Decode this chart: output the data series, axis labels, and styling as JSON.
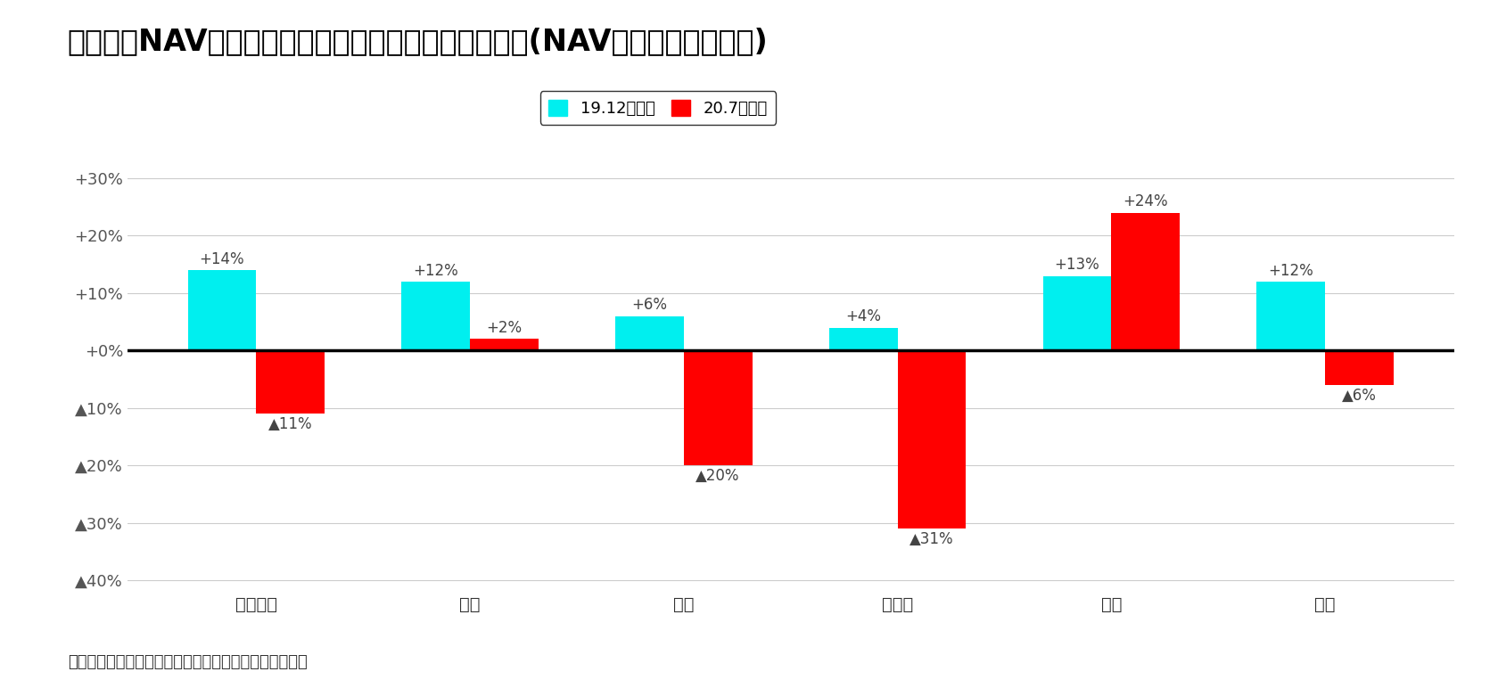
{
  "title": "図表３：NAV倍率が示唆する将来の不動産価格騰落率(NAV倍率＝１倍を前提)",
  "categories": [
    "オフィス",
    "住宅",
    "商業",
    "ホテル",
    "物流",
    "全体"
  ],
  "series1_label": "19.12末時点",
  "series2_label": "20.7末時点",
  "series1_values": [
    14,
    12,
    6,
    4,
    13,
    12
  ],
  "series2_values": [
    -11,
    2,
    -20,
    -31,
    24,
    -6
  ],
  "series1_color": "#00EFEF",
  "series2_color": "#FF0000",
  "ylim": [
    -42,
    35
  ],
  "yticks": [
    30,
    20,
    10,
    0,
    -10,
    -20,
    -30,
    -40
  ],
  "background_color": "#FFFFFF",
  "grid_color": "#CCCCCC",
  "zero_line_color": "#000000",
  "source_text": "（出所）開示データをもとにニッセイ基礎研究所が作成",
  "title_fontsize": 24,
  "tick_fontsize": 13,
  "annotation_fontsize": 12,
  "bar_width": 0.32
}
